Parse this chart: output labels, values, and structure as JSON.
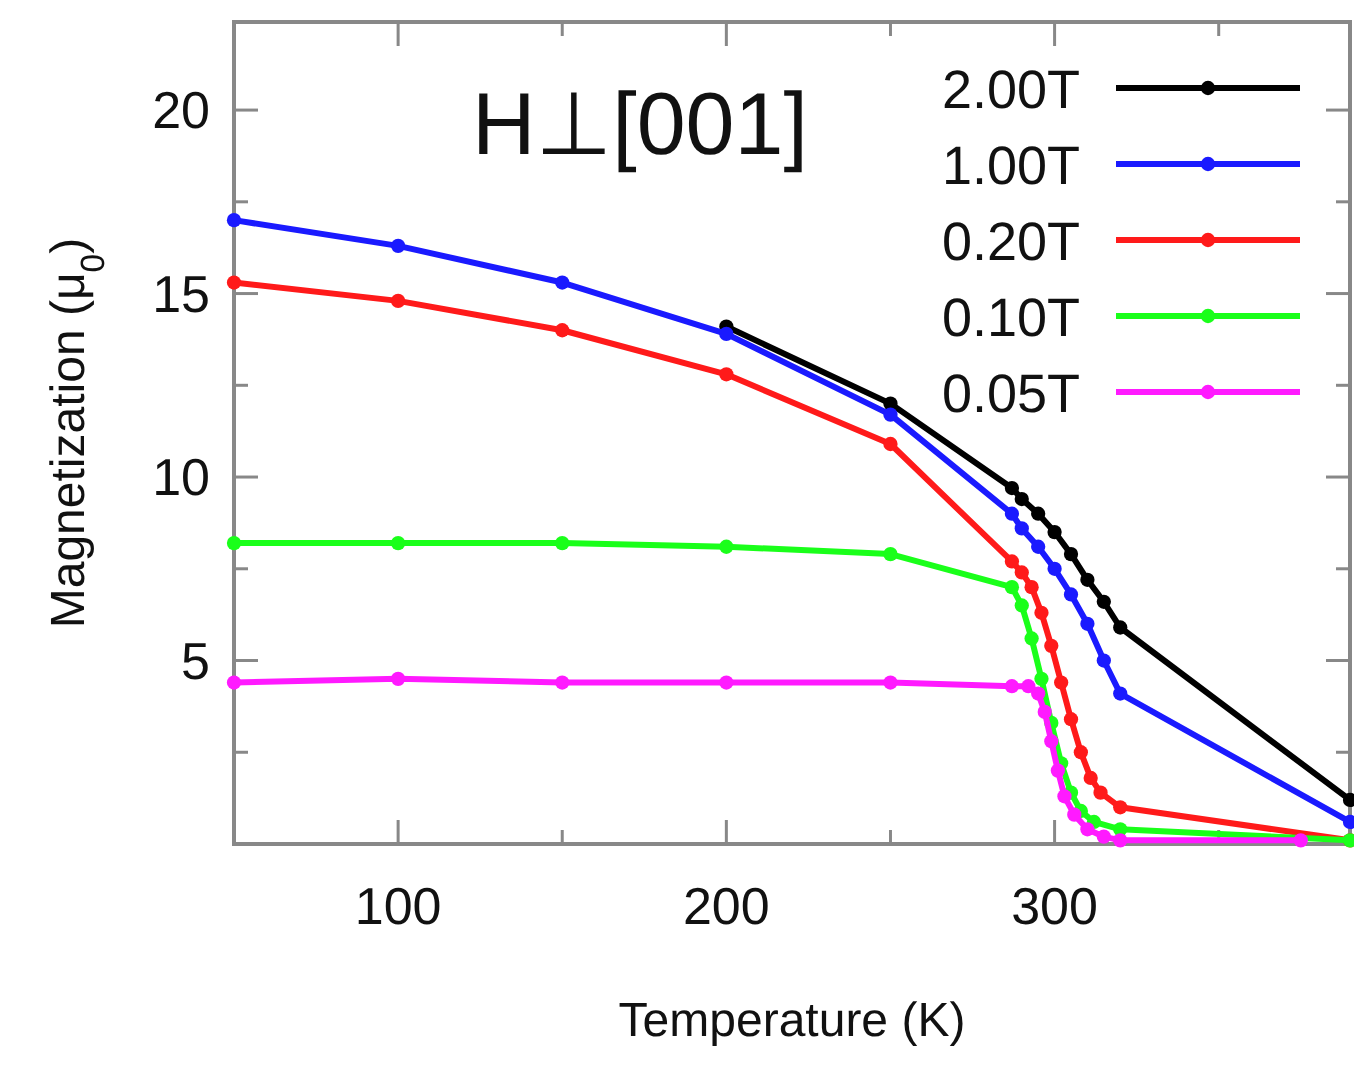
{
  "chart_data": {
    "type": "line",
    "xlabel": "Temperature (K)",
    "ylabel": "Magnetization (μ$_{0}$)",
    "annotations": [
      "H⊥[001]"
    ],
    "xlim": [
      50,
      390
    ],
    "xticks": [
      {
        "value": 50,
        "label": null
      },
      100,
      {
        "value": 150,
        "label": null
      },
      200,
      {
        "value": 250,
        "label": null
      },
      300,
      {
        "value": 350,
        "label": null
      }
    ],
    "ylim": [
      0,
      22.4
    ],
    "yticks": [
      {
        "value": 2.5,
        "label": null
      },
      5,
      {
        "value": 7.5,
        "label": null
      },
      10,
      {
        "value": 12.5,
        "label": null
      },
      15,
      {
        "value": 17.5,
        "label": null
      },
      20
    ],
    "grid": false,
    "legend": "top right",
    "marker": "circle",
    "line_style": "solid",
    "series": [
      {
        "name": "2.00T",
        "color": "#000000",
        "x": [
          200,
          250,
          287,
          290,
          295,
          300,
          305,
          310,
          315,
          320,
          390
        ],
        "values": [
          14.1,
          12.0,
          9.7,
          9.4,
          9.0,
          8.5,
          7.9,
          7.2,
          6.6,
          5.9,
          1.2
        ]
      },
      {
        "name": "1.00T",
        "color": "#1a1aff",
        "x": [
          50,
          100,
          150,
          200,
          250,
          287,
          290,
          295,
          300,
          305,
          310,
          315,
          320,
          390
        ],
        "values": [
          17.0,
          16.3,
          15.3,
          13.9,
          11.7,
          9.0,
          8.6,
          8.1,
          7.5,
          6.8,
          6.0,
          5.0,
          4.1,
          0.6
        ]
      },
      {
        "name": "0.20T",
        "color": "#ff1a1a",
        "x": [
          50,
          100,
          150,
          200,
          250,
          287,
          290,
          293,
          296,
          299,
          302,
          305,
          308,
          311,
          314,
          320,
          390
        ],
        "values": [
          15.3,
          14.8,
          14.0,
          12.8,
          10.9,
          7.7,
          7.4,
          7.0,
          6.3,
          5.4,
          4.4,
          3.4,
          2.5,
          1.8,
          1.4,
          1.0,
          0.1
        ]
      },
      {
        "name": "0.10T",
        "color": "#1aff1a",
        "x": [
          50,
          100,
          150,
          200,
          250,
          287,
          290,
          293,
          296,
          299,
          302,
          305,
          308,
          312,
          320,
          390
        ],
        "values": [
          8.2,
          8.2,
          8.2,
          8.1,
          7.9,
          7.0,
          6.5,
          5.6,
          4.5,
          3.3,
          2.2,
          1.4,
          0.9,
          0.6,
          0.4,
          0.1
        ]
      },
      {
        "name": "0.05T",
        "color": "#ff1aff",
        "x": [
          50,
          100,
          150,
          200,
          250,
          287,
          292,
          295,
          297,
          299,
          301,
          303,
          306,
          310,
          315,
          320,
          375
        ],
        "values": [
          4.4,
          4.5,
          4.4,
          4.4,
          4.4,
          4.3,
          4.3,
          4.1,
          3.6,
          2.8,
          2.0,
          1.3,
          0.8,
          0.4,
          0.2,
          0.1,
          0.1
        ]
      }
    ]
  }
}
